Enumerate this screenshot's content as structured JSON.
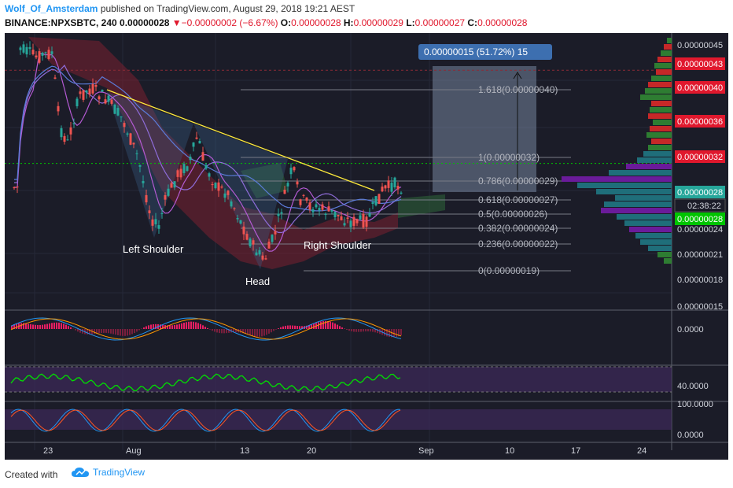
{
  "header": {
    "author": "Wolf_Of_Amsterdam",
    "published": "published on TradingView.com, August 29, 2018 19:21 AEST",
    "symbol": "BINANCE:NPXSBTC, 240",
    "last": "0.00000028",
    "change": "▼−0.00000002 (−6.67%)",
    "o_label": "O:",
    "o_val": "0.00000028",
    "h_label": "H:",
    "h_val": "0.00000029",
    "l_label": "L:",
    "l_val": "0.00000027",
    "c_label": "C:",
    "c_val": "0.00000028"
  },
  "footer": {
    "created": "Created with",
    "brand": "TradingView"
  },
  "colors": {
    "background": "#1b1c28",
    "up": "#26a69a",
    "down": "#ef5350",
    "fib": "#787b86",
    "trendline": "#ffeb3b",
    "measure_box": "#8a9bb5",
    "measure_label": "#3d6fb0",
    "price_red": "#e0182d",
    "price_green": "#00c400"
  },
  "chart_data": {
    "type": "candlestick",
    "x_ticks": [
      "23",
      "Aug",
      "13",
      "20",
      "Sep",
      "10",
      "17",
      "24"
    ],
    "price_axis_labels": [
      "0.00000045",
      "0.00000043",
      "0.00000040",
      "0.00000036",
      "0.00000032",
      "0.00000028",
      "02:38:22",
      "0.00000028",
      "0.00000024",
      "0.00000021",
      "0.00000018",
      "0.00000015"
    ],
    "fib_levels": [
      {
        "label": "1.618(0.00000040)",
        "price": 4e-07
      },
      {
        "label": "1(0.00000032)",
        "price": 3.2e-07
      },
      {
        "label": "0.786(0.00000029)",
        "price": 2.9e-07
      },
      {
        "label": "0.618(0.00000027)",
        "price": 2.7e-07
      },
      {
        "label": "0.5(0.00000026)",
        "price": 2.6e-07
      },
      {
        "label": "0.382(0.00000024)",
        "price": 2.4e-07
      },
      {
        "label": "0.236(0.00000022)",
        "price": 2.2e-07
      },
      {
        "label": "0(0.00000019)",
        "price": 1.9e-07
      }
    ],
    "measure_label": "0.00000015 (51.72%) 15",
    "annotations": [
      "Left Shoulder",
      "Head",
      "Right Shoulder"
    ],
    "indicators": [
      {
        "name": "MACD",
        "axis_label": "0.0000"
      },
      {
        "name": "RSI",
        "axis_label": "40.0000"
      },
      {
        "name": "Stoch RSI",
        "axis_labels": [
          "100.0000",
          "0.0000"
        ]
      }
    ]
  }
}
